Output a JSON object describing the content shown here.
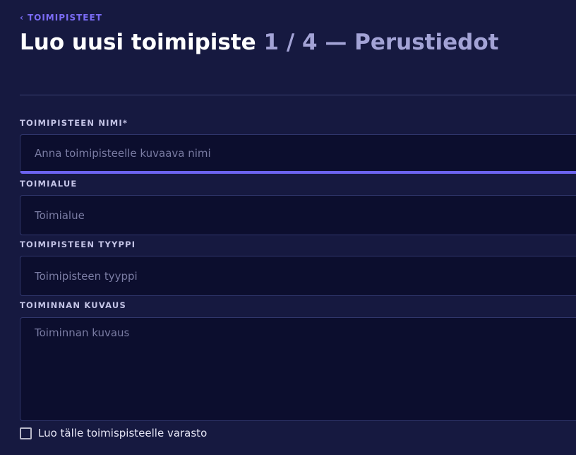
{
  "breadcrumb": {
    "back_label": "TOIMIPISTEET",
    "icon": "chevron-left-icon"
  },
  "header": {
    "title": "Luo uusi toimipiste",
    "step": "1 / 4 — Perustiedot"
  },
  "form": {
    "name": {
      "label": "TOIMIPISTEEN NIMI*",
      "placeholder": "Anna toimipisteelle kuvaava nimi",
      "value": ""
    },
    "area": {
      "label": "TOIMIALUE",
      "placeholder": "Toimialue",
      "value": ""
    },
    "type": {
      "label": "TOIMIPISTEEN TYYPPI",
      "placeholder": "Toimipisteen tyyppi",
      "value": ""
    },
    "description": {
      "label": "TOIMINNAN KUVAUS",
      "placeholder": "Toiminnan kuvaus",
      "value": ""
    },
    "create_storage": {
      "label": "Luo tälle toimispisteelle varasto",
      "checked": false
    }
  },
  "colors": {
    "accent": "#6c63f0",
    "background": "#161940",
    "input": "#0c0e2e"
  }
}
